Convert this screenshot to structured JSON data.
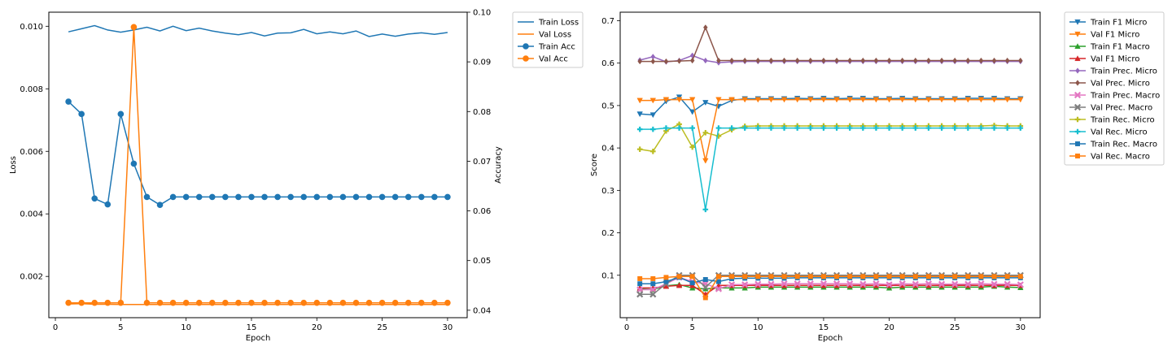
{
  "chart_data": [
    {
      "type": "line",
      "title": "",
      "xlabel": "Epoch",
      "ylabel": "Loss",
      "ylabel_right": "Accuracy",
      "xlim": [
        -0.5,
        31.5
      ],
      "ylim": [
        0.00068,
        0.01045
      ],
      "ylim_right": [
        0.0385,
        0.1
      ],
      "x_ticks": [
        0,
        5,
        10,
        15,
        20,
        25,
        30
      ],
      "y_ticks": [
        0.002,
        0.004,
        0.006,
        0.008,
        0.01
      ],
      "y_tick_labels": [
        "0.002",
        "0.004",
        "0.006",
        "0.008",
        "0.010"
      ],
      "y_ticks_right": [
        0.04,
        0.05,
        0.06,
        0.07,
        0.08,
        0.09,
        0.1
      ],
      "y_tick_labels_right": [
        "0.04",
        "0.05",
        "0.06",
        "0.07",
        "0.08",
        "0.09",
        "0.10"
      ],
      "grid": false,
      "legend_position": "outside-right",
      "x": [
        1,
        2,
        3,
        4,
        5,
        6,
        7,
        8,
        9,
        10,
        11,
        12,
        13,
        14,
        15,
        16,
        17,
        18,
        19,
        20,
        21,
        22,
        23,
        24,
        25,
        26,
        27,
        28,
        29,
        30
      ],
      "series": [
        {
          "name": "Train Loss",
          "axis": "left",
          "color": "#1f77b4",
          "marker": "none",
          "values": [
            0.00982,
            0.00992,
            0.01002,
            0.00988,
            0.00981,
            0.00988,
            0.00997,
            0.00985,
            0.01,
            0.00986,
            0.00994,
            0.00985,
            0.00978,
            0.00973,
            0.0098,
            0.00969,
            0.00978,
            0.00979,
            0.0099,
            0.00976,
            0.00982,
            0.00976,
            0.00985,
            0.00967,
            0.00975,
            0.00968,
            0.00975,
            0.00979,
            0.00974,
            0.0098
          ]
        },
        {
          "name": "Val Loss",
          "axis": "left",
          "color": "#ff7f0e",
          "marker": "none",
          "values": [
            0.00112,
            0.00113,
            0.00111,
            0.00111,
            0.0011,
            0.0011,
            0.0011,
            0.0011,
            0.0011,
            0.0011,
            0.0011,
            0.0011,
            0.0011,
            0.0011,
            0.0011,
            0.0011,
            0.0011,
            0.0011,
            0.0011,
            0.0011,
            0.0011,
            0.0011,
            0.0011,
            0.0011,
            0.0011,
            0.0011,
            0.0011,
            0.0011,
            0.0011,
            0.0011
          ]
        },
        {
          "name": "Train Acc",
          "axis": "right",
          "color": "#1f77b4",
          "marker": "circle",
          "values": [
            0.082,
            0.0795,
            0.0625,
            0.0613,
            0.0795,
            0.0695,
            0.0628,
            0.0612,
            0.0628,
            0.0628,
            0.0628,
            0.0628,
            0.0628,
            0.0628,
            0.0628,
            0.0628,
            0.0628,
            0.0628,
            0.0628,
            0.0628,
            0.0628,
            0.0628,
            0.0628,
            0.0628,
            0.0628,
            0.0628,
            0.0628,
            0.0628,
            0.0628,
            0.0628
          ]
        },
        {
          "name": "Val Acc",
          "axis": "right",
          "color": "#ff7f0e",
          "marker": "circle",
          "values": [
            0.0415,
            0.0415,
            0.0415,
            0.0415,
            0.0415,
            0.097,
            0.0415,
            0.0415,
            0.0415,
            0.0415,
            0.0415,
            0.0415,
            0.0415,
            0.0415,
            0.0415,
            0.0415,
            0.0415,
            0.0415,
            0.0415,
            0.0415,
            0.0415,
            0.0415,
            0.0415,
            0.0415,
            0.0415,
            0.0415,
            0.0415,
            0.0415,
            0.0415,
            0.0415
          ]
        }
      ]
    },
    {
      "type": "line",
      "title": "",
      "xlabel": "Epoch",
      "ylabel": "Score",
      "xlim": [
        -0.5,
        31.5
      ],
      "ylim": [
        0.0,
        0.72
      ],
      "x_ticks": [
        0,
        5,
        10,
        15,
        20,
        25,
        30
      ],
      "y_ticks": [
        0.1,
        0.2,
        0.3,
        0.4,
        0.5,
        0.6,
        0.7
      ],
      "y_tick_labels": [
        "0.1",
        "0.2",
        "0.3",
        "0.4",
        "0.5",
        "0.6",
        "0.7"
      ],
      "grid": false,
      "legend_position": "outside-right",
      "x": [
        1,
        2,
        3,
        4,
        5,
        6,
        7,
        8,
        9,
        10,
        11,
        12,
        13,
        14,
        15,
        16,
        17,
        18,
        19,
        20,
        21,
        22,
        23,
        24,
        25,
        26,
        27,
        28,
        29,
        30
      ],
      "series": [
        {
          "name": "Train F1 Micro",
          "color": "#1f77b4",
          "marker": "triangle-down",
          "values": [
            0.48,
            0.478,
            0.51,
            0.52,
            0.485,
            0.507,
            0.498,
            0.512,
            0.516,
            0.516,
            0.516,
            0.516,
            0.517,
            0.516,
            0.517,
            0.516,
            0.517,
            0.517,
            0.516,
            0.516,
            0.517,
            0.516,
            0.516,
            0.516,
            0.516,
            0.517,
            0.517,
            0.517,
            0.516,
            0.516
          ]
        },
        {
          "name": "Val F1 Micro",
          "color": "#ff7f0e",
          "marker": "triangle-down",
          "values": [
            0.512,
            0.512,
            0.514,
            0.514,
            0.514,
            0.37,
            0.514,
            0.514,
            0.514,
            0.514,
            0.514,
            0.514,
            0.514,
            0.514,
            0.514,
            0.514,
            0.514,
            0.514,
            0.514,
            0.514,
            0.514,
            0.514,
            0.514,
            0.514,
            0.514,
            0.514,
            0.514,
            0.514,
            0.514,
            0.514
          ]
        },
        {
          "name": "Train F1 Macro",
          "color": "#2ca02c",
          "marker": "triangle-up",
          "values": [
            0.068,
            0.066,
            0.075,
            0.078,
            0.07,
            0.068,
            0.07,
            0.07,
            0.07,
            0.072,
            0.072,
            0.072,
            0.072,
            0.072,
            0.072,
            0.072,
            0.072,
            0.072,
            0.072,
            0.07,
            0.072,
            0.072,
            0.072,
            0.072,
            0.072,
            0.072,
            0.072,
            0.074,
            0.072,
            0.071
          ]
        },
        {
          "name": "Val F1 Micro",
          "color": "#d62728",
          "marker": "triangle-up",
          "values": [
            0.07,
            0.07,
            0.074,
            0.076,
            0.076,
            0.055,
            0.076,
            0.076,
            0.076,
            0.076,
            0.076,
            0.076,
            0.076,
            0.076,
            0.076,
            0.076,
            0.076,
            0.076,
            0.076,
            0.076,
            0.076,
            0.076,
            0.076,
            0.076,
            0.076,
            0.076,
            0.076,
            0.076,
            0.076,
            0.076
          ]
        },
        {
          "name": "Train Prec. Micro",
          "color": "#9467bd",
          "marker": "diamond",
          "values": [
            0.607,
            0.615,
            0.603,
            0.606,
            0.618,
            0.606,
            0.601,
            0.603,
            0.604,
            0.604,
            0.604,
            0.604,
            0.604,
            0.604,
            0.604,
            0.604,
            0.604,
            0.604,
            0.604,
            0.604,
            0.604,
            0.604,
            0.604,
            0.604,
            0.604,
            0.604,
            0.604,
            0.604,
            0.604,
            0.604
          ]
        },
        {
          "name": "Val Prec. Micro",
          "color": "#8c564b",
          "marker": "diamond",
          "values": [
            0.604,
            0.604,
            0.604,
            0.605,
            0.606,
            0.684,
            0.606,
            0.606,
            0.606,
            0.606,
            0.606,
            0.606,
            0.606,
            0.606,
            0.606,
            0.606,
            0.606,
            0.606,
            0.606,
            0.606,
            0.606,
            0.606,
            0.606,
            0.606,
            0.606,
            0.606,
            0.606,
            0.606,
            0.606,
            0.606
          ]
        },
        {
          "name": "Train Prec. Macro",
          "color": "#e377c2",
          "marker": "x",
          "values": [
            0.066,
            0.066,
            0.08,
            0.095,
            0.085,
            0.08,
            0.068,
            0.078,
            0.078,
            0.079,
            0.079,
            0.08,
            0.08,
            0.08,
            0.08,
            0.08,
            0.08,
            0.079,
            0.08,
            0.078,
            0.08,
            0.079,
            0.08,
            0.079,
            0.079,
            0.079,
            0.08,
            0.079,
            0.079,
            0.078
          ]
        },
        {
          "name": "Val Prec. Macro",
          "color": "#7f7f7f",
          "marker": "x",
          "values": [
            0.055,
            0.055,
            0.08,
            0.1,
            0.1,
            0.072,
            0.1,
            0.1,
            0.1,
            0.1,
            0.1,
            0.1,
            0.1,
            0.1,
            0.1,
            0.1,
            0.1,
            0.1,
            0.1,
            0.1,
            0.1,
            0.1,
            0.1,
            0.1,
            0.1,
            0.1,
            0.1,
            0.1,
            0.1,
            0.1
          ]
        },
        {
          "name": "Train Rec. Micro",
          "color": "#bcbd22",
          "marker": "plus",
          "values": [
            0.397,
            0.392,
            0.44,
            0.456,
            0.402,
            0.436,
            0.428,
            0.443,
            0.451,
            0.452,
            0.452,
            0.452,
            0.452,
            0.452,
            0.452,
            0.452,
            0.452,
            0.452,
            0.452,
            0.452,
            0.452,
            0.452,
            0.452,
            0.452,
            0.452,
            0.452,
            0.452,
            0.453,
            0.452,
            0.452
          ]
        },
        {
          "name": "Val Rec. Micro",
          "color": "#17becf",
          "marker": "plus",
          "values": [
            0.444,
            0.444,
            0.447,
            0.447,
            0.447,
            0.255,
            0.447,
            0.447,
            0.447,
            0.447,
            0.447,
            0.447,
            0.447,
            0.447,
            0.447,
            0.447,
            0.447,
            0.447,
            0.447,
            0.447,
            0.447,
            0.447,
            0.447,
            0.447,
            0.447,
            0.447,
            0.447,
            0.447,
            0.447,
            0.447
          ]
        },
        {
          "name": "Train Rec. Macro",
          "color": "#1f77b4",
          "marker": "square",
          "values": [
            0.08,
            0.08,
            0.085,
            0.095,
            0.082,
            0.09,
            0.085,
            0.092,
            0.093,
            0.093,
            0.093,
            0.093,
            0.094,
            0.094,
            0.094,
            0.094,
            0.094,
            0.094,
            0.094,
            0.094,
            0.094,
            0.094,
            0.094,
            0.094,
            0.094,
            0.094,
            0.094,
            0.094,
            0.094,
            0.094
          ]
        },
        {
          "name": "Val Rec. Macro",
          "color": "#ff7f0e",
          "marker": "square",
          "values": [
            0.092,
            0.092,
            0.095,
            0.097,
            0.097,
            0.047,
            0.097,
            0.097,
            0.097,
            0.097,
            0.097,
            0.097,
            0.097,
            0.097,
            0.097,
            0.097,
            0.097,
            0.097,
            0.097,
            0.097,
            0.097,
            0.097,
            0.097,
            0.097,
            0.097,
            0.097,
            0.097,
            0.097,
            0.097,
            0.097
          ]
        }
      ]
    }
  ]
}
